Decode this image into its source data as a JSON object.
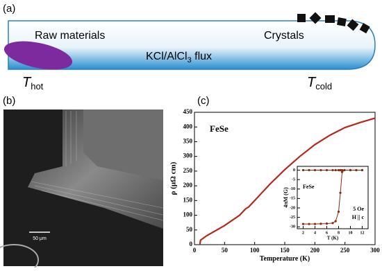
{
  "panel_a": {
    "label": "(a)",
    "raw": "Raw materials",
    "crystals": "Crystals",
    "flux": "KCl/AlCl",
    "flux_sub": "3",
    "flux_end": " flux",
    "t": "T",
    "hot": "hot",
    "cold": "cold"
  },
  "panel_b": {
    "label": "(b)",
    "scale": "50 μm"
  },
  "panel_c": {
    "label": "(c)"
  },
  "chart_data": [
    {
      "type": "line",
      "title": "FeSe",
      "xlabel": "Temperature (K)",
      "ylabel": "ρ (μΩ cm)",
      "x": [
        9,
        10,
        20,
        50,
        75,
        85,
        90,
        100,
        125,
        150,
        175,
        200,
        225,
        250,
        275,
        300
      ],
      "series": [
        {
          "color": "#b5281c",
          "values": [
            0,
            15,
            30,
            65,
            100,
            122,
            128,
            150,
            205,
            255,
            300,
            340,
            372,
            398,
            415,
            430
          ]
        }
      ],
      "xlim": [
        0,
        300
      ],
      "xticks": [
        0,
        50,
        100,
        150,
        200,
        250,
        300
      ],
      "ylim": [
        0,
        450
      ],
      "yticks": [
        0,
        50,
        100,
        150,
        200,
        250,
        300,
        350,
        400,
        450
      ]
    },
    {
      "type": "line",
      "title": "FeSe",
      "xlabel": "T (K)",
      "ylabel": "4πM (G)",
      "notes": [
        "5 Oe",
        "H || c"
      ],
      "x": [
        2,
        3,
        4,
        5,
        6,
        7,
        7.5,
        8,
        8.3,
        8.6,
        9,
        10,
        11,
        12
      ],
      "series": [
        {
          "color": "#8b2a0a",
          "values": [
            -28.5,
            -28.5,
            -28.5,
            -28.4,
            -28.3,
            -28,
            -27,
            -22,
            -12,
            -1,
            0,
            0,
            0,
            0
          ]
        },
        {
          "color": "#8b2a0a",
          "values": [
            0,
            0,
            0,
            0,
            0,
            0,
            0,
            0,
            0,
            0,
            0,
            0,
            0,
            0
          ]
        }
      ],
      "xlim": [
        1,
        13
      ],
      "xticks": [
        2,
        4,
        6,
        8,
        10,
        12
      ],
      "ylim": [
        -31,
        2
      ],
      "yticks": [
        0,
        -5,
        -10,
        -15,
        -20,
        -25,
        -30
      ]
    }
  ]
}
